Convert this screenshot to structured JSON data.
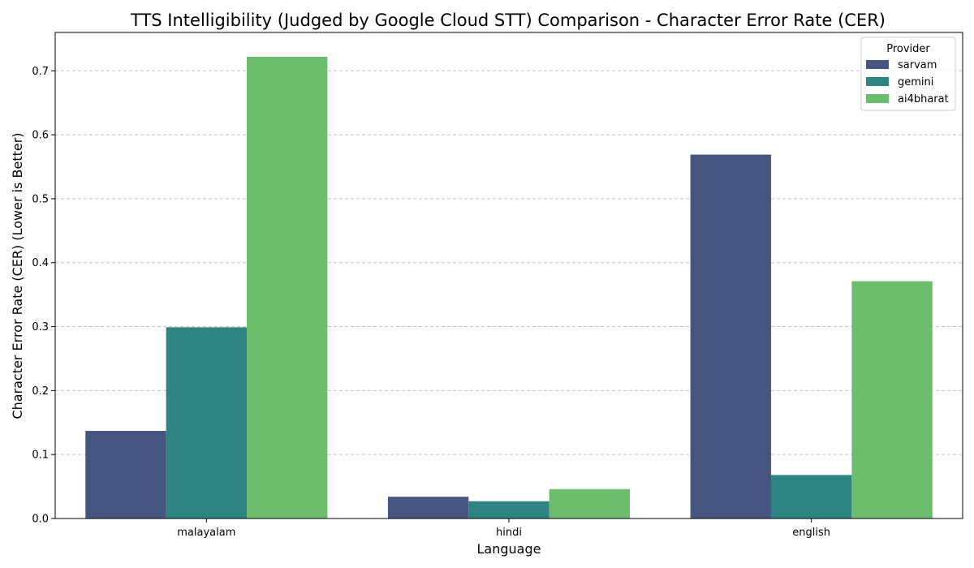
{
  "chart_data": {
    "type": "bar",
    "title": "TTS Intelligibility (Judged by Google Cloud STT) Comparison - Character Error Rate (CER)",
    "xlabel": "Language",
    "ylabel": "Character Error Rate (CER) (Lower is Better)",
    "categories": [
      "malayalam",
      "hindi",
      "english"
    ],
    "series": [
      {
        "name": "sarvam",
        "color": "#46557f",
        "values": [
          0.137,
          0.034,
          0.569
        ]
      },
      {
        "name": "gemini",
        "color": "#2e8480",
        "values": [
          0.299,
          0.027,
          0.068
        ]
      },
      {
        "name": "ai4bharat",
        "color": "#6bbd6c",
        "values": [
          0.722,
          0.046,
          0.371
        ]
      }
    ],
    "ylim": [
      0,
      0.76
    ],
    "yticks": [
      "0.0",
      "0.1",
      "0.2",
      "0.3",
      "0.4",
      "0.5",
      "0.6",
      "0.7"
    ],
    "grid": "y-dashed",
    "legend": {
      "title": "Provider",
      "placement": "top-right"
    }
  }
}
